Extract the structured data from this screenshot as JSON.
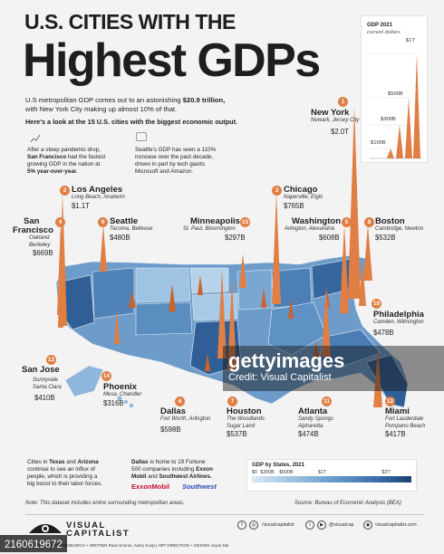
{
  "header": {
    "title_line1": "U.S. CITIES WITH THE",
    "title_line2": "Highest GDPs",
    "intro_a": "U.S metropolitan GDP comes out to an astonishing ",
    "intro_gdp": "$20.9 trillion,",
    "intro_b": "with New York City making up almost 10% of that.",
    "intro2": "Here's a look at the 15 U.S. cities with the biggest economic output."
  },
  "notes": {
    "sf_a": "After a steep pandemic drop,",
    "sf_b": "San Francisco",
    "sf_c": "had the fastest",
    "sf_d": "growing GDP in the nation at",
    "sf_e": "5% year-over-year.",
    "seattle_a": "Seattle's GDP has seen a 110%",
    "seattle_b": "increase over the past decade,",
    "seattle_c": "driven in part by tech giants",
    "seattle_d": "Microsoft and Amazon."
  },
  "gdp_legend": {
    "title": "GDP 2021",
    "subtitle": "current dollars",
    "levels": [
      "$1T",
      "$500B",
      "$300B",
      "$100B"
    ]
  },
  "cities": [
    {
      "rank": "1",
      "name": "New York",
      "metro": "Newark, Jersey City",
      "gdp": "$2.0T"
    },
    {
      "rank": "2",
      "name": "Los Angeles",
      "metro": "Long Beach, Anaheim",
      "gdp": "$1.1T"
    },
    {
      "rank": "3",
      "name": "Chicago",
      "metro": "Naperville, Elgin",
      "gdp": "$765B"
    },
    {
      "rank": "4",
      "name_a": "San",
      "name_b": "Francisco",
      "metro_a": "Oakland",
      "metro_b": "Berkeley",
      "gdp": "$669B"
    },
    {
      "rank": "5",
      "name": "Washington",
      "metro": "Arlington, Alexandria",
      "gdp": "$608B"
    },
    {
      "rank": "6",
      "name": "Dallas",
      "metro": "Fort Worth, Arlington",
      "gdp": "$598B"
    },
    {
      "rank": "7",
      "name": "Houston",
      "metro_a": "The Woodlands",
      "metro_b": "Sugar Land",
      "gdp": "$537B"
    },
    {
      "rank": "8",
      "name": "Boston",
      "metro": "Cambridge, Newton",
      "gdp": "$532B"
    },
    {
      "rank": "9",
      "name": "Seattle",
      "metro": "Tacoma, Bellevue",
      "gdp": "$480B"
    },
    {
      "rank": "10",
      "name": "Philadelphia",
      "metro": "Camden, Wilmington",
      "gdp": "$478B"
    },
    {
      "rank": "11",
      "name": "Atlanta",
      "metro_a": "Sandy Springs",
      "metro_b": "Alpharetta",
      "gdp": "$474B"
    },
    {
      "rank": "12",
      "name": "Miami",
      "metro_a": "Fort Lauderdale",
      "metro_b": "Pompano Beach",
      "gdp": "$417B"
    },
    {
      "rank": "13",
      "name": "San Jose",
      "metro_a": "Sunnyvale",
      "metro_b": "Santa Clara",
      "gdp": "$410B"
    },
    {
      "rank": "14",
      "name": "Phoenix",
      "metro": "Mesa, Chandler",
      "gdp": "$316B"
    },
    {
      "rank": "15",
      "name": "Minneapolis",
      "metro": "St. Paul, Bloomington",
      "gdp": "$297B"
    }
  ],
  "state_legend": {
    "title": "GDP by States, 2021",
    "ticks": [
      "$0",
      "$200B",
      "$500B",
      "$1T",
      "$2T"
    ]
  },
  "bottom": {
    "texas_a": "Cities in",
    "texas_b": "Texas",
    "texas_c": "and",
    "texas_d": "Arizona",
    "texas_e": "continue to see an influx of",
    "texas_f": "people, which is providing a",
    "texas_g": "big boost to their labor forces.",
    "dallas_a": "Dallas",
    "dallas_b": "is home to 19 Fortune",
    "dallas_c": "500 companies including",
    "dallas_d": "Exxon",
    "dallas_e": "Mobil",
    "dallas_f": "and",
    "dallas_g": "Southwest Airlines.",
    "brand1": "ExxonMobil",
    "brand2": "Southwest"
  },
  "footer": {
    "note": "Note: This dataset includes entire surrounding metropolitan areas.",
    "source": "Source: Bureau of Economic Analysis (BEA)",
    "logo_a": "VISUAL",
    "logo_b": "CAPITALIST",
    "credits": "COLLABORATORS   RESEARCH + WRITING Raul Amoros, Avery Koop   |   ART DIRECTION + DESIGN Joyce Ma",
    "social1": "/visualcapitalist",
    "social2": "@visualcap",
    "social3": "visualcapitalist.com"
  },
  "watermark": {
    "brand": "gettyimages",
    "credit": "Credit: Visual Capitalist",
    "id": "2160619672"
  },
  "colors": {
    "accent": "#e07e44",
    "map_dark": "#2f5f96",
    "map_light": "#cfe0ef"
  }
}
